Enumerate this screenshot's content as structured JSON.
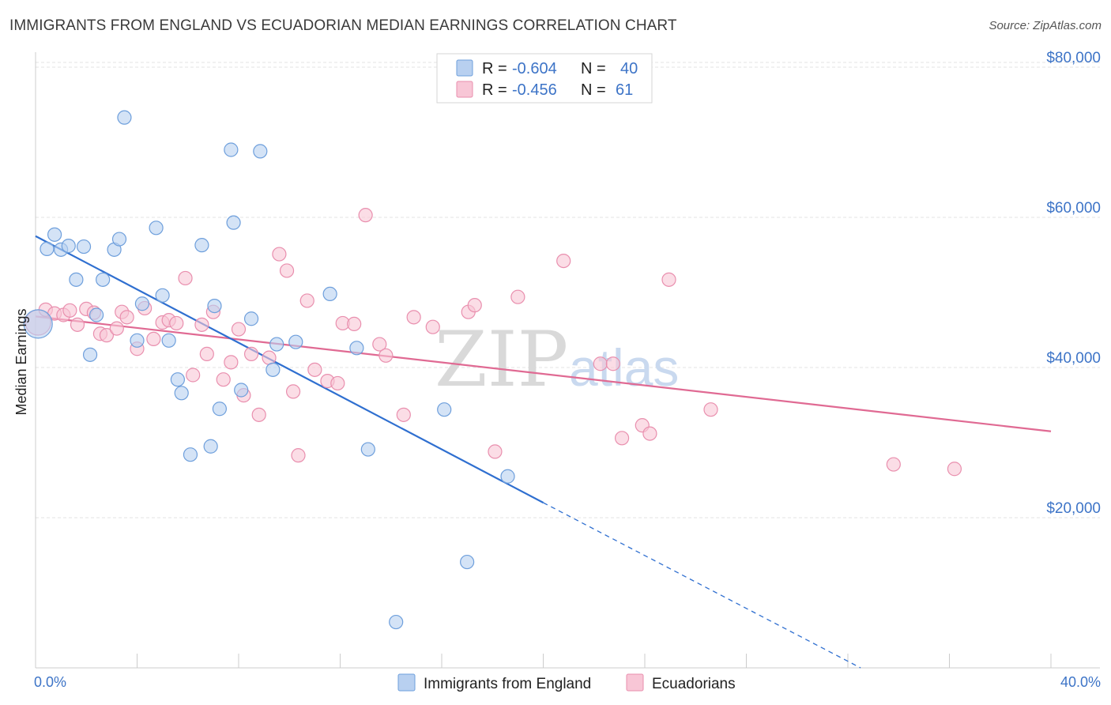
{
  "header": {
    "title": "IMMIGRANTS FROM ENGLAND VS ECUADORIAN MEDIAN EARNINGS CORRELATION CHART",
    "source": "Source: ZipAtlas.com"
  },
  "watermark": {
    "zip": "ZIP",
    "atlas": "atlas"
  },
  "colors": {
    "england_fill": "#b8d0f0",
    "england_stroke": "#6e9fdc",
    "england_line": "#2f6fd0",
    "ecuador_fill": "#f8c6d6",
    "ecuador_stroke": "#e98fae",
    "ecuador_line": "#e06a93",
    "tick_text": "#3d74c7",
    "grid": "#e3e3e3"
  },
  "legend": {
    "rows": [
      {
        "r_label": "R =",
        "r_value": "-0.604",
        "n_label": "N =",
        "n_value": "40"
      },
      {
        "r_label": "R =",
        "r_value": "-0.456",
        "n_label": "N =",
        "n_value": "61"
      }
    ]
  },
  "bottom_legend": {
    "items": [
      {
        "label": "Immigrants from England"
      },
      {
        "label": "Ecuadorians"
      }
    ]
  },
  "chart_data": {
    "type": "scatter",
    "title": "IMMIGRANTS FROM ENGLAND VS ECUADORIAN MEDIAN EARNINGS CORRELATION CHART",
    "xlabel": "",
    "ylabel": "Median Earnings",
    "xlim": [
      0,
      40
    ],
    "ylim": [
      0,
      82000
    ],
    "x_tick_labels": [
      "0.0%",
      "40.0%"
    ],
    "y_ticks": [
      20000,
      40000,
      60000,
      80000
    ],
    "y_tick_labels": [
      "$20,000",
      "$40,000",
      "$60,000",
      "$80,000"
    ],
    "grid": true,
    "legend_position": "top-center",
    "series": [
      {
        "name": "Immigrants from England",
        "r": -0.604,
        "n": 40,
        "trend": {
          "x_start": 0,
          "y_start": 57500,
          "x_solid_end": 20,
          "y_solid_end": 22000,
          "x_dash_end": 32.5,
          "y_dash_end": 0
        },
        "points": [
          [
            0.1,
            45800
          ],
          [
            0.45,
            55800
          ],
          [
            0.75,
            57700
          ],
          [
            1.0,
            55700
          ],
          [
            1.3,
            56200
          ],
          [
            1.6,
            51700
          ],
          [
            1.9,
            56100
          ],
          [
            2.15,
            41700
          ],
          [
            2.4,
            47000
          ],
          [
            2.65,
            51700
          ],
          [
            3.1,
            55700
          ],
          [
            3.3,
            57100
          ],
          [
            3.5,
            73300
          ],
          [
            4.0,
            43600
          ],
          [
            4.2,
            48500
          ],
          [
            4.75,
            58600
          ],
          [
            5.0,
            49600
          ],
          [
            5.25,
            43600
          ],
          [
            5.6,
            38400
          ],
          [
            5.75,
            36600
          ],
          [
            6.1,
            28400
          ],
          [
            6.55,
            56300
          ],
          [
            6.9,
            29500
          ],
          [
            7.05,
            48200
          ],
          [
            7.25,
            34500
          ],
          [
            7.7,
            69000
          ],
          [
            7.8,
            59300
          ],
          [
            8.1,
            37000
          ],
          [
            8.5,
            46500
          ],
          [
            8.85,
            68800
          ],
          [
            9.35,
            39700
          ],
          [
            9.5,
            43100
          ],
          [
            10.25,
            43400
          ],
          [
            11.6,
            49800
          ],
          [
            12.65,
            42600
          ],
          [
            13.1,
            29100
          ],
          [
            14.2,
            6100
          ],
          [
            16.1,
            34400
          ],
          [
            17.0,
            14100
          ],
          [
            18.6,
            25500
          ]
        ]
      },
      {
        "name": "Ecuadorians",
        "r": -0.456,
        "n": 61,
        "trend": {
          "x_start": 0,
          "y_start": 46800,
          "x_end": 40,
          "y_end": 31500
        },
        "points": [
          [
            0.1,
            46000
          ],
          [
            0.4,
            47700
          ],
          [
            0.75,
            47200
          ],
          [
            1.1,
            47000
          ],
          [
            1.35,
            47600
          ],
          [
            1.65,
            45700
          ],
          [
            2.0,
            47800
          ],
          [
            2.3,
            47300
          ],
          [
            2.55,
            44500
          ],
          [
            2.8,
            44300
          ],
          [
            3.2,
            45200
          ],
          [
            3.4,
            47400
          ],
          [
            3.6,
            46700
          ],
          [
            4.0,
            42500
          ],
          [
            4.3,
            47900
          ],
          [
            4.65,
            43800
          ],
          [
            5.0,
            46000
          ],
          [
            5.25,
            46300
          ],
          [
            5.55,
            45900
          ],
          [
            5.9,
            51900
          ],
          [
            6.2,
            39000
          ],
          [
            6.55,
            45700
          ],
          [
            6.75,
            41800
          ],
          [
            7.0,
            47400
          ],
          [
            7.4,
            38400
          ],
          [
            7.7,
            40700
          ],
          [
            8.0,
            45100
          ],
          [
            8.2,
            36300
          ],
          [
            8.5,
            41800
          ],
          [
            8.8,
            33700
          ],
          [
            9.2,
            41300
          ],
          [
            9.6,
            55100
          ],
          [
            9.9,
            52900
          ],
          [
            10.15,
            36800
          ],
          [
            10.35,
            28300
          ],
          [
            10.7,
            48900
          ],
          [
            11.0,
            39700
          ],
          [
            11.5,
            38200
          ],
          [
            11.9,
            37900
          ],
          [
            12.1,
            45900
          ],
          [
            12.55,
            45800
          ],
          [
            13.0,
            60300
          ],
          [
            13.55,
            43100
          ],
          [
            13.8,
            41600
          ],
          [
            14.5,
            33700
          ],
          [
            14.9,
            46700
          ],
          [
            15.65,
            45400
          ],
          [
            17.05,
            47400
          ],
          [
            17.3,
            48300
          ],
          [
            18.1,
            28800
          ],
          [
            19.0,
            49400
          ],
          [
            20.8,
            54200
          ],
          [
            22.25,
            40500
          ],
          [
            22.75,
            40500
          ],
          [
            23.1,
            30600
          ],
          [
            23.9,
            32300
          ],
          [
            24.2,
            31200
          ],
          [
            24.95,
            51700
          ],
          [
            26.6,
            34400
          ],
          [
            33.8,
            27100
          ],
          [
            36.2,
            26500
          ]
        ]
      }
    ]
  }
}
